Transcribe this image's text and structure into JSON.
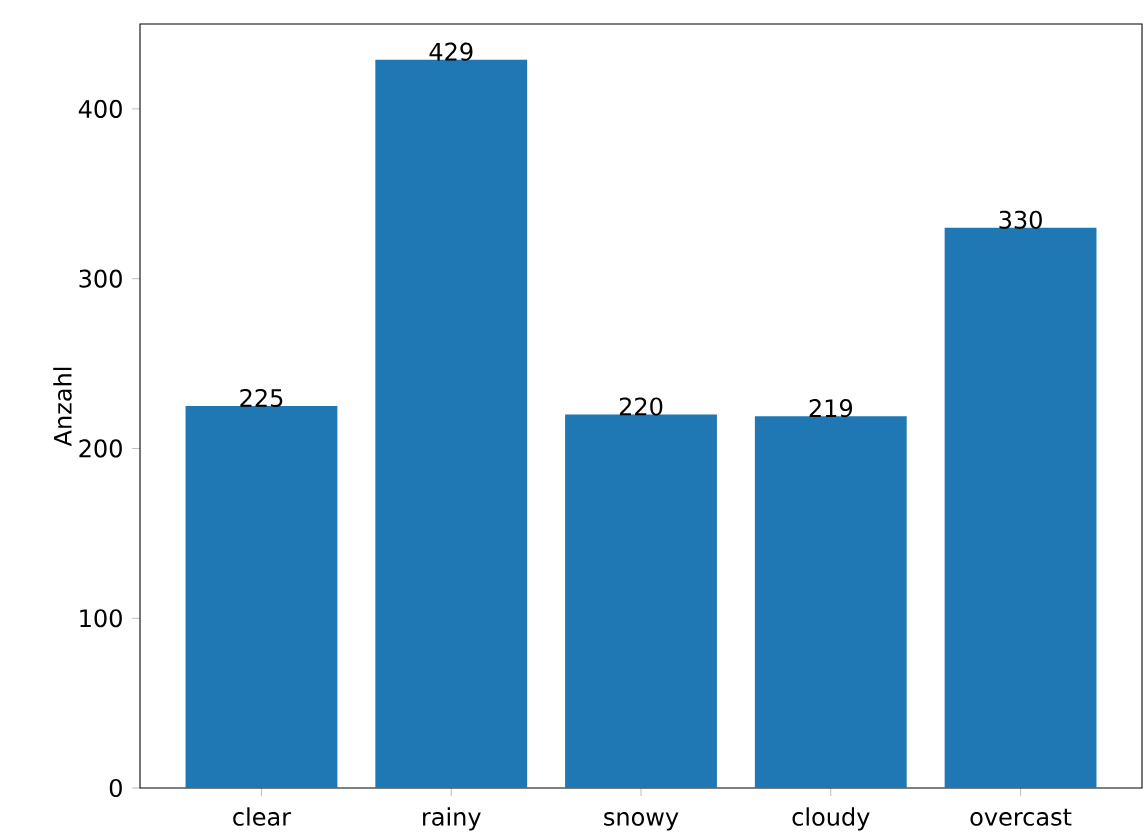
{
  "chart_data": {
    "type": "bar",
    "ylabel": "Anzahl",
    "categories": [
      "clear",
      "rainy",
      "snowy",
      "cloudy",
      "overcast"
    ],
    "values": [
      225,
      429,
      220,
      219,
      330
    ],
    "color": "#1f77b4",
    "ylim": [
      0,
      450
    ],
    "yticks": [
      0,
      100,
      200,
      300,
      400
    ],
    "data_labels": true,
    "grid": false
  }
}
